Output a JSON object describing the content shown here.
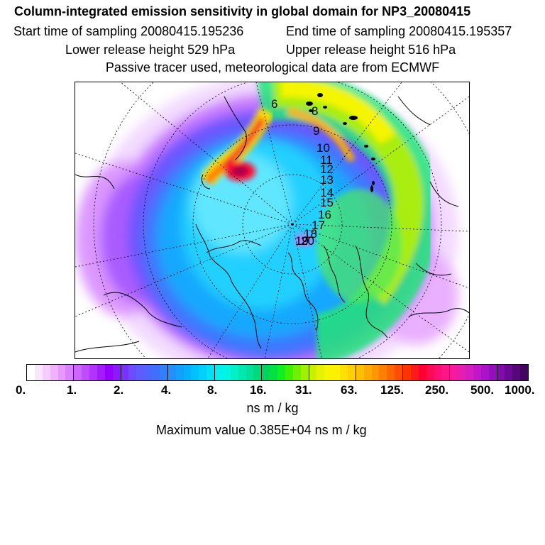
{
  "header": {
    "title": "Column-integrated emission sensitivity in global domain for NP3_20080415",
    "start_label": "Start time of sampling 20080415.195236",
    "end_label": "End time of sampling 20080415.195357",
    "lower_label": "Lower release height  529 hPa",
    "upper_label": "Upper release height  516 hPa",
    "tracer_label": "Passive tracer used, meteorological data are from ECMWF"
  },
  "map": {
    "projection": "north-polar-stereographic",
    "trajectory_day_labels": [
      "6",
      "8",
      "9",
      "10",
      "11",
      "12",
      "13",
      "14",
      "15",
      "16",
      "17",
      "18",
      "19",
      "20"
    ]
  },
  "colorbar": {
    "tick_labels": [
      "0.",
      "1.",
      "2.",
      "4.",
      "8.",
      "16.",
      "31.",
      "63.",
      "125.",
      "250.",
      "500.",
      "1000."
    ],
    "colors": [
      "#ffffff",
      "#fbe6ff",
      "#f6ccff",
      "#f0b2ff",
      "#e699ff",
      "#d97fff",
      "#cc66ff",
      "#bf4dff",
      "#b233ff",
      "#a31aff",
      "#9400ff",
      "#8a1aff",
      "#7a33ff",
      "#6b4dff",
      "#5c5cff",
      "#4d66ff",
      "#3f6fff",
      "#3080ff",
      "#2290ff",
      "#14a0ff",
      "#05b0ff",
      "#00c0ff",
      "#00d0ff",
      "#00e0f5",
      "#00f0f0",
      "#00f5e0",
      "#00f0c8",
      "#00e8b0",
      "#00e096",
      "#00d97a",
      "#00d45f",
      "#00e040",
      "#10f020",
      "#40f000",
      "#70f000",
      "#a0f000",
      "#c8f000",
      "#e6f200",
      "#f5f500",
      "#fff000",
      "#ffe000",
      "#ffd000",
      "#ffbe00",
      "#ffaa00",
      "#ff9600",
      "#ff8000",
      "#ff6600",
      "#ff4d00",
      "#ff3300",
      "#ff1a1a",
      "#ff0033",
      "#ff0a55",
      "#ff0f70",
      "#ff148a",
      "#f51aa0",
      "#e61eb0",
      "#d21ebe",
      "#c018c8",
      "#aa14c8",
      "#9410be",
      "#800caa",
      "#6a0a94",
      "#560878",
      "#420560"
    ]
  },
  "units": "ns m / kg",
  "maximum": "Maximum value  0.385E+04 ns m / kg"
}
